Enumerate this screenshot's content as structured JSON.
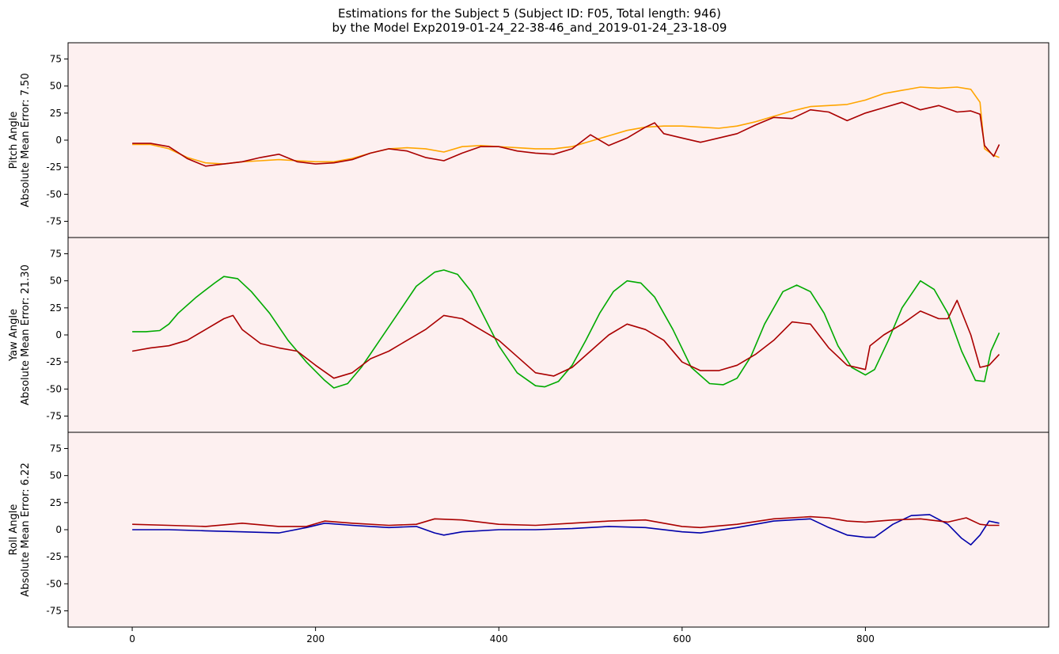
{
  "chart_data": [
    {
      "type": "line",
      "title": "Estimations for the Subject 5 (Subject ID: F05, Total length: 946)",
      "subtitle": "by the Model Exp2019-01-24_22-38-46_and_2019-01-24_23-18-09",
      "ylabel_line1": "Pitch Angle",
      "ylabel_line2": "Absolute Mean Error: 7.50",
      "xlim": [
        -70,
        1000
      ],
      "ylim": [
        -90,
        90
      ],
      "yticks": [
        75,
        50,
        25,
        0,
        -25,
        -50,
        -75
      ],
      "xticks": [
        0,
        200,
        400,
        600,
        800
      ],
      "background": "#fdf0f0",
      "grid": false,
      "series": [
        {
          "color": "#ffa500",
          "x": [
            0,
            20,
            40,
            60,
            80,
            100,
            120,
            140,
            160,
            180,
            200,
            220,
            240,
            260,
            280,
            300,
            320,
            340,
            360,
            380,
            400,
            420,
            440,
            460,
            480,
            500,
            520,
            540,
            560,
            580,
            600,
            620,
            640,
            660,
            680,
            700,
            720,
            740,
            760,
            780,
            800,
            820,
            840,
            860,
            880,
            900,
            915,
            925,
            930,
            940,
            946
          ],
          "y": [
            -4,
            -4,
            -8,
            -16,
            -21,
            -22,
            -20,
            -19,
            -18,
            -19,
            -20,
            -20,
            -17,
            -12,
            -8,
            -7,
            -8,
            -11,
            -6,
            -5,
            -6,
            -7,
            -8,
            -8,
            -6,
            -1,
            4,
            9,
            12,
            13,
            13,
            12,
            11,
            13,
            17,
            22,
            27,
            31,
            32,
            33,
            37,
            43,
            46,
            49,
            48,
            49,
            47,
            35,
            -8,
            -14,
            -16
          ]
        },
        {
          "color": "#aa0000",
          "x": [
            0,
            20,
            40,
            60,
            80,
            100,
            120,
            140,
            160,
            180,
            200,
            220,
            240,
            260,
            280,
            300,
            320,
            340,
            360,
            380,
            400,
            420,
            440,
            460,
            480,
            500,
            520,
            540,
            560,
            570,
            580,
            600,
            620,
            640,
            660,
            680,
            700,
            720,
            740,
            760,
            780,
            800,
            820,
            840,
            860,
            880,
            900,
            915,
            925,
            930,
            940,
            946
          ],
          "y": [
            -3,
            -3,
            -6,
            -17,
            -24,
            -22,
            -20,
            -16,
            -13,
            -20,
            -22,
            -21,
            -18,
            -12,
            -8,
            -10,
            -16,
            -19,
            -12,
            -6,
            -6,
            -10,
            -12,
            -13,
            -8,
            5,
            -5,
            2,
            12,
            16,
            6,
            2,
            -2,
            2,
            6,
            14,
            21,
            20,
            28,
            26,
            18,
            25,
            30,
            35,
            28,
            32,
            26,
            27,
            24,
            -5,
            -15,
            -4
          ]
        }
      ]
    },
    {
      "type": "line",
      "ylabel_line1": "Yaw Angle",
      "ylabel_line2": "Absolute Mean Error: 21.30",
      "xlim": [
        -70,
        1000
      ],
      "ylim": [
        -90,
        90
      ],
      "yticks": [
        75,
        50,
        25,
        0,
        -25,
        -50,
        -75
      ],
      "xticks": [
        0,
        200,
        400,
        600,
        800
      ],
      "background": "#fdf0f0",
      "grid": false,
      "series": [
        {
          "color": "#00aa00",
          "x": [
            0,
            15,
            30,
            40,
            50,
            70,
            90,
            100,
            115,
            130,
            150,
            170,
            190,
            210,
            220,
            235,
            250,
            270,
            290,
            310,
            330,
            340,
            355,
            370,
            385,
            400,
            420,
            440,
            450,
            465,
            480,
            495,
            510,
            525,
            540,
            555,
            570,
            590,
            610,
            630,
            645,
            660,
            675,
            690,
            710,
            725,
            740,
            755,
            770,
            785,
            800,
            810,
            825,
            840,
            860,
            875,
            890,
            905,
            920,
            930,
            937,
            946
          ],
          "y": [
            3,
            3,
            4,
            10,
            20,
            35,
            48,
            54,
            52,
            40,
            20,
            -5,
            -25,
            -42,
            -49,
            -45,
            -30,
            -5,
            20,
            45,
            58,
            60,
            56,
            40,
            15,
            -10,
            -35,
            -47,
            -48,
            -43,
            -28,
            -5,
            20,
            40,
            50,
            48,
            35,
            5,
            -30,
            -45,
            -46,
            -40,
            -20,
            10,
            40,
            46,
            40,
            20,
            -10,
            -30,
            -37,
            -32,
            -5,
            25,
            50,
            42,
            20,
            -15,
            -42,
            -43,
            -15,
            2
          ]
        },
        {
          "color": "#aa0000",
          "x": [
            0,
            20,
            40,
            60,
            80,
            100,
            110,
            120,
            140,
            160,
            180,
            200,
            220,
            240,
            260,
            280,
            300,
            320,
            340,
            360,
            380,
            400,
            420,
            440,
            460,
            480,
            500,
            520,
            540,
            560,
            580,
            600,
            620,
            640,
            660,
            680,
            700,
            720,
            740,
            760,
            780,
            800,
            805,
            820,
            840,
            860,
            880,
            890,
            900,
            915,
            925,
            935,
            946
          ],
          "y": [
            -15,
            -12,
            -10,
            -5,
            5,
            15,
            18,
            5,
            -8,
            -12,
            -15,
            -28,
            -40,
            -35,
            -22,
            -15,
            -5,
            5,
            18,
            15,
            5,
            -5,
            -20,
            -35,
            -38,
            -30,
            -15,
            0,
            10,
            5,
            -5,
            -25,
            -33,
            -33,
            -28,
            -18,
            -5,
            12,
            10,
            -12,
            -28,
            -32,
            -10,
            0,
            10,
            22,
            15,
            15,
            32,
            0,
            -30,
            -28,
            -18
          ]
        }
      ]
    },
    {
      "type": "line",
      "ylabel_line1": "Roll Angle",
      "ylabel_line2": "Absolute Mean Error: 6.22",
      "xlim": [
        -70,
        1000
      ],
      "ylim": [
        -90,
        90
      ],
      "yticks": [
        75,
        50,
        25,
        0,
        -25,
        -50,
        -75
      ],
      "xticks": [
        0,
        200,
        400,
        600,
        800
      ],
      "background": "#fdf0f0",
      "grid": false,
      "series": [
        {
          "color": "#0000aa",
          "x": [
            0,
            40,
            80,
            120,
            160,
            190,
            210,
            240,
            280,
            310,
            330,
            340,
            360,
            400,
            440,
            480,
            520,
            560,
            600,
            620,
            660,
            700,
            740,
            760,
            780,
            800,
            810,
            830,
            850,
            870,
            890,
            905,
            915,
            925,
            935,
            946
          ],
          "y": [
            0,
            0,
            -1,
            -2,
            -3,
            2,
            6,
            4,
            2,
            3,
            -3,
            -5,
            -2,
            0,
            0,
            1,
            3,
            2,
            -2,
            -3,
            2,
            8,
            10,
            2,
            -5,
            -7,
            -7,
            5,
            13,
            14,
            5,
            -8,
            -14,
            -5,
            8,
            6
          ]
        },
        {
          "color": "#aa0000",
          "x": [
            0,
            40,
            80,
            120,
            160,
            190,
            210,
            240,
            280,
            310,
            330,
            360,
            400,
            440,
            480,
            520,
            560,
            600,
            620,
            660,
            700,
            740,
            760,
            780,
            800,
            830,
            860,
            890,
            910,
            925,
            935,
            946
          ],
          "y": [
            5,
            4,
            3,
            6,
            3,
            3,
            8,
            6,
            4,
            5,
            10,
            9,
            5,
            4,
            6,
            8,
            9,
            3,
            2,
            5,
            10,
            12,
            11,
            8,
            7,
            9,
            10,
            7,
            11,
            5,
            4,
            4
          ]
        }
      ]
    }
  ]
}
